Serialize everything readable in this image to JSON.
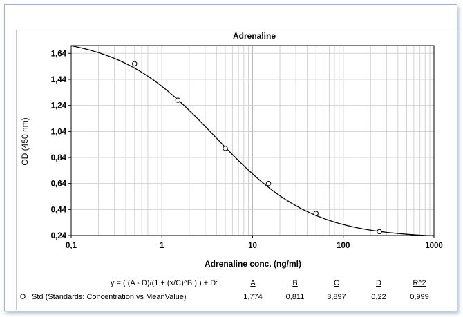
{
  "chart_data": {
    "type": "scatter",
    "title": "Adrenaline",
    "xlabel": "Adrenaline conc. (ng/ml)",
    "ylabel": "OD (450 nm)",
    "x_scale": "log",
    "xlim": [
      0.1,
      1000
    ],
    "ylim": [
      0.24,
      1.7
    ],
    "x_tick_labels": [
      "0,1",
      "1",
      "10",
      "100",
      "1000"
    ],
    "x_tick_values": [
      0.1,
      1,
      10,
      100,
      1000
    ],
    "y_tick_labels": [
      "0,24",
      "0,44",
      "0,64",
      "0,84",
      "1,04",
      "1,24",
      "1,44",
      "1,64"
    ],
    "y_tick_values": [
      0.24,
      0.44,
      0.64,
      0.84,
      1.04,
      1.24,
      1.44,
      1.64
    ],
    "grid": true,
    "series": [
      {
        "name": "Std (Standards: Concentration vs MeanValue)",
        "marker": "open-circle",
        "points": [
          {
            "x": 0.5,
            "y": 1.56
          },
          {
            "x": 1.5,
            "y": 1.28
          },
          {
            "x": 5,
            "y": 0.91
          },
          {
            "x": 15,
            "y": 0.64
          },
          {
            "x": 50,
            "y": 0.41
          },
          {
            "x": 250,
            "y": 0.27
          }
        ]
      }
    ],
    "fit": {
      "equation": "y = ( (A - D)/(1 + (x/C)^B ) ) + D:",
      "headers": [
        "A",
        "B",
        "C",
        "D",
        "R^2"
      ],
      "values": [
        "1,774",
        "0,811",
        "3,897",
        "0,22",
        "0,999"
      ],
      "params": {
        "A": 1.774,
        "B": 0.811,
        "C": 3.897,
        "D": 0.22
      }
    }
  }
}
